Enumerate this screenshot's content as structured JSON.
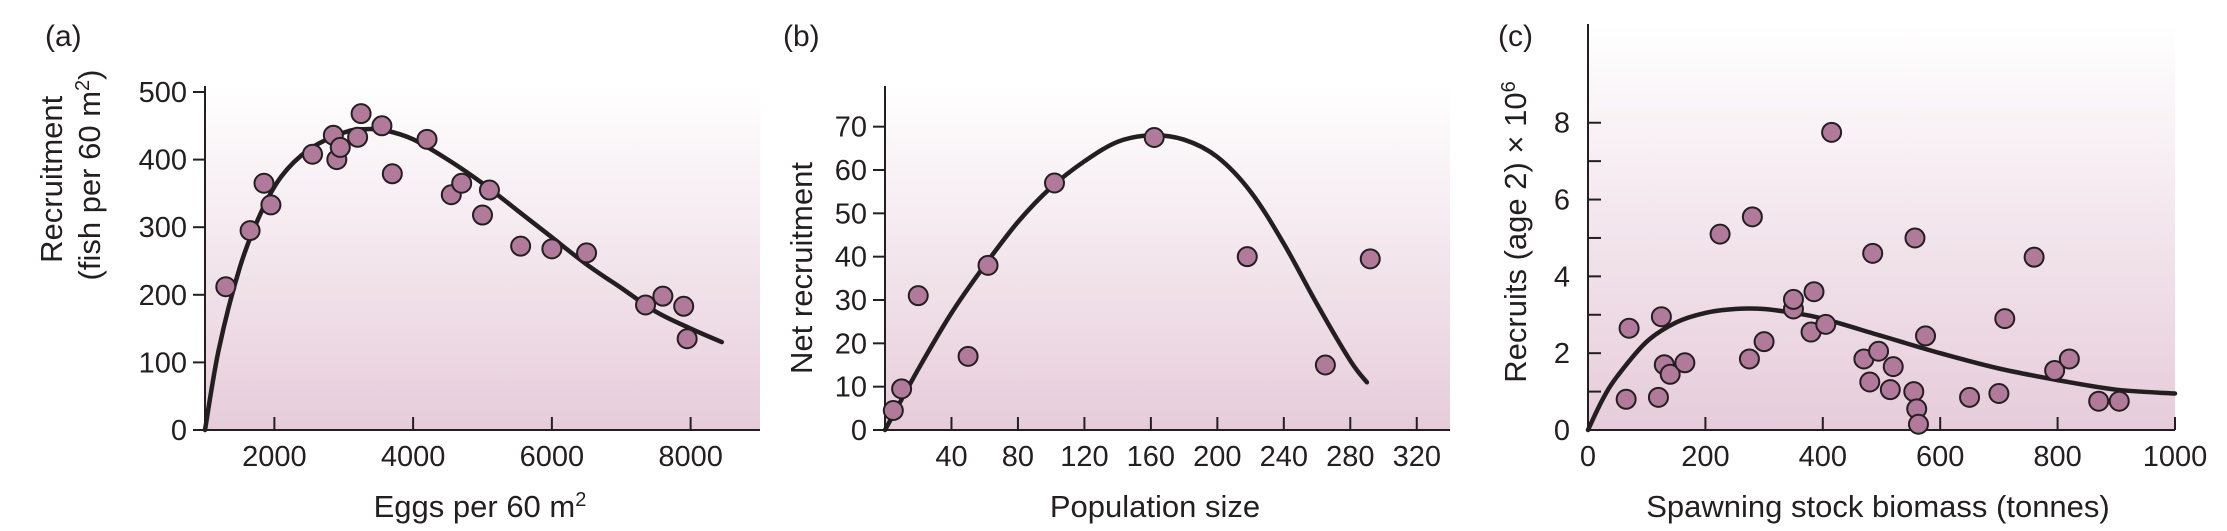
{
  "figure": {
    "gradient_top": "#ffffff",
    "gradient_bottom": "#e6ccda",
    "point_fill": "#b17a9a",
    "line_color": "#231f20"
  },
  "chart_data": [
    {
      "type": "scatter",
      "panel_letter": "(a)",
      "xlabel_main": "Eggs per 60 m",
      "xlabel_sup": "2",
      "ylabel_lines": [
        "Recruitment",
        "(fish per 60 m"
      ],
      "ylabel_sup": "2",
      "ylabel_end": ")",
      "xlim": [
        1000,
        9000
      ],
      "ylim": [
        0,
        500
      ],
      "xticks": [
        2000,
        4000,
        6000,
        8000
      ],
      "xtick_labels": [
        "2000",
        "4000",
        "6000",
        "8000"
      ],
      "yticks": [
        0,
        100,
        200,
        300,
        400,
        500
      ],
      "ytick_labels": [
        "0",
        "100",
        "200",
        "300",
        "400",
        "500"
      ],
      "series": [
        {
          "kind": "points",
          "x": [
            1300,
            1650,
            1850,
            1950,
            2550,
            2850,
            2900,
            2950,
            3200,
            3250,
            3550,
            3700,
            4200,
            4550,
            4700,
            5000,
            5100,
            5550,
            6000,
            6500,
            7350,
            7600,
            7900,
            7950
          ],
          "y": [
            212,
            295,
            365,
            333,
            408,
            436,
            400,
            418,
            433,
            468,
            450,
            379,
            430,
            348,
            365,
            318,
            355,
            272,
            268,
            262,
            185,
            198,
            183,
            135
          ]
        },
        {
          "kind": "curve",
          "x": [
            1000,
            1200,
            1500,
            1800,
            2100,
            2500,
            3000,
            3300,
            3600,
            4000,
            4500,
            5000,
            5500,
            6000,
            6500,
            7000,
            7500,
            8000,
            8450
          ],
          "y": [
            0,
            120,
            240,
            320,
            375,
            415,
            440,
            445,
            443,
            430,
            400,
            365,
            325,
            285,
            245,
            210,
            175,
            150,
            130
          ]
        }
      ]
    },
    {
      "type": "scatter",
      "panel_letter": "(b)",
      "xlabel": "Population size",
      "ylabel": "Net recruitment",
      "xlim": [
        0,
        340
      ],
      "ylim": [
        0,
        78
      ],
      "xticks": [
        40,
        80,
        120,
        160,
        200,
        240,
        280,
        320
      ],
      "xtick_labels": [
        "40",
        "80",
        "120",
        "160",
        "200",
        "240",
        "280",
        "320"
      ],
      "yticks": [
        0,
        10,
        20,
        30,
        40,
        50,
        60,
        70
      ],
      "ytick_labels": [
        "0",
        "10",
        "20",
        "30",
        "40",
        "50",
        "60",
        "70"
      ],
      "series": [
        {
          "kind": "points",
          "x": [
            5,
            10,
            20,
            50,
            62,
            102,
            162,
            218,
            265,
            292
          ],
          "y": [
            4.5,
            9.5,
            31,
            17,
            38,
            57,
            67.5,
            40,
            15,
            39.5
          ]
        },
        {
          "kind": "curve",
          "x": [
            0,
            20,
            40,
            60,
            80,
            100,
            120,
            140,
            160,
            180,
            200,
            220,
            240,
            260,
            280,
            290
          ],
          "y": [
            0,
            14,
            27,
            38,
            48,
            56,
            62,
            66.5,
            68,
            67,
            63,
            55,
            43,
            29,
            16,
            11
          ]
        }
      ]
    },
    {
      "type": "scatter",
      "panel_letter": "(c)",
      "xlabel": "Spawning stock biomass (tonnes)",
      "ylabel_main": "Recruits (age 2) × 10",
      "ylabel_sup": "6",
      "xlim": [
        0,
        1000
      ],
      "ylim": [
        0,
        8.8
      ],
      "xticks": [
        0,
        200,
        400,
        600,
        800,
        1000
      ],
      "xtick_labels": [
        "0",
        "200",
        "400",
        "600",
        "800",
        "1000"
      ],
      "yticks": [
        0,
        2,
        4,
        6,
        8
      ],
      "ytick_labels": [
        "0",
        "2",
        "4",
        "6",
        "8"
      ],
      "minor_yticks": [
        1,
        3,
        5,
        7
      ],
      "series": [
        {
          "kind": "points",
          "x": [
            65,
            70,
            120,
            125,
            130,
            140,
            165,
            225,
            275,
            280,
            300,
            350,
            350,
            380,
            385,
            405,
            415,
            470,
            480,
            485,
            495,
            515,
            520,
            555,
            557,
            560,
            563,
            575,
            650,
            700,
            710,
            760,
            795,
            820,
            870,
            905
          ],
          "y": [
            0.8,
            2.65,
            0.85,
            2.95,
            1.7,
            1.45,
            1.75,
            5.1,
            1.85,
            5.55,
            2.3,
            3.15,
            3.4,
            2.55,
            3.6,
            2.75,
            7.75,
            1.85,
            1.25,
            4.6,
            2.05,
            1.05,
            1.65,
            1.0,
            5.0,
            0.55,
            0.15,
            2.45,
            0.85,
            0.95,
            2.9,
            4.5,
            1.55,
            1.85,
            0.75,
            0.75
          ]
        },
        {
          "kind": "curve",
          "x": [
            0,
            25,
            50,
            100,
            150,
            200,
            250,
            300,
            350,
            400,
            500,
            600,
            700,
            800,
            900,
            1000
          ],
          "y": [
            0,
            0.8,
            1.4,
            2.3,
            2.8,
            3.05,
            3.15,
            3.15,
            3.05,
            2.9,
            2.45,
            2.0,
            1.6,
            1.3,
            1.05,
            0.95
          ]
        }
      ]
    }
  ]
}
